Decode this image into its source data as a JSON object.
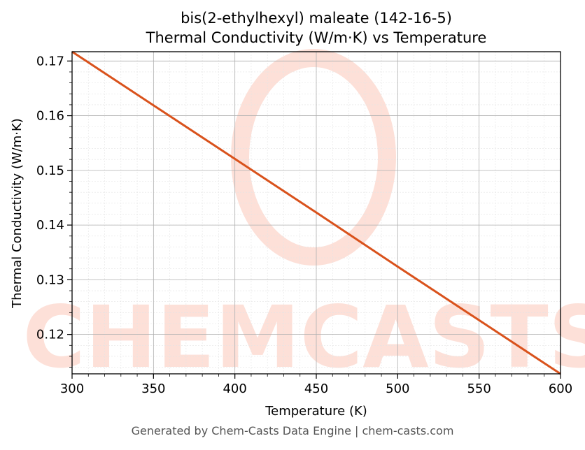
{
  "chart_data": {
    "type": "line",
    "title": "bis(2-ethylhexyl) maleate (142-16-5)",
    "subtitle": "Thermal Conductivity (W/m·K) vs Temperature",
    "xlabel": "Temperature (K)",
    "ylabel": "Thermal Conductivity (W/m·K)",
    "xlim": [
      300,
      600
    ],
    "ylim": [
      0.1128,
      0.1717
    ],
    "xticks": [
      300,
      350,
      400,
      450,
      500,
      550,
      600
    ],
    "yticks": [
      0.12,
      0.13,
      0.14,
      0.15,
      0.16,
      0.17
    ],
    "grid": true,
    "series": [
      {
        "color": "#d9521c",
        "x": [
          300,
          350,
          400,
          450,
          500,
          550,
          600
        ],
        "y": [
          0.1717,
          0.1619,
          0.1521,
          0.1423,
          0.1324,
          0.1226,
          0.1128
        ]
      }
    ]
  },
  "watermark": "CHEMCASTS",
  "footer": "Generated by Chem-Casts Data Engine | chem-casts.com",
  "colors": {
    "line": "#d9521c",
    "watermark": "#fde0d8",
    "grid": "#b0b0b0"
  }
}
